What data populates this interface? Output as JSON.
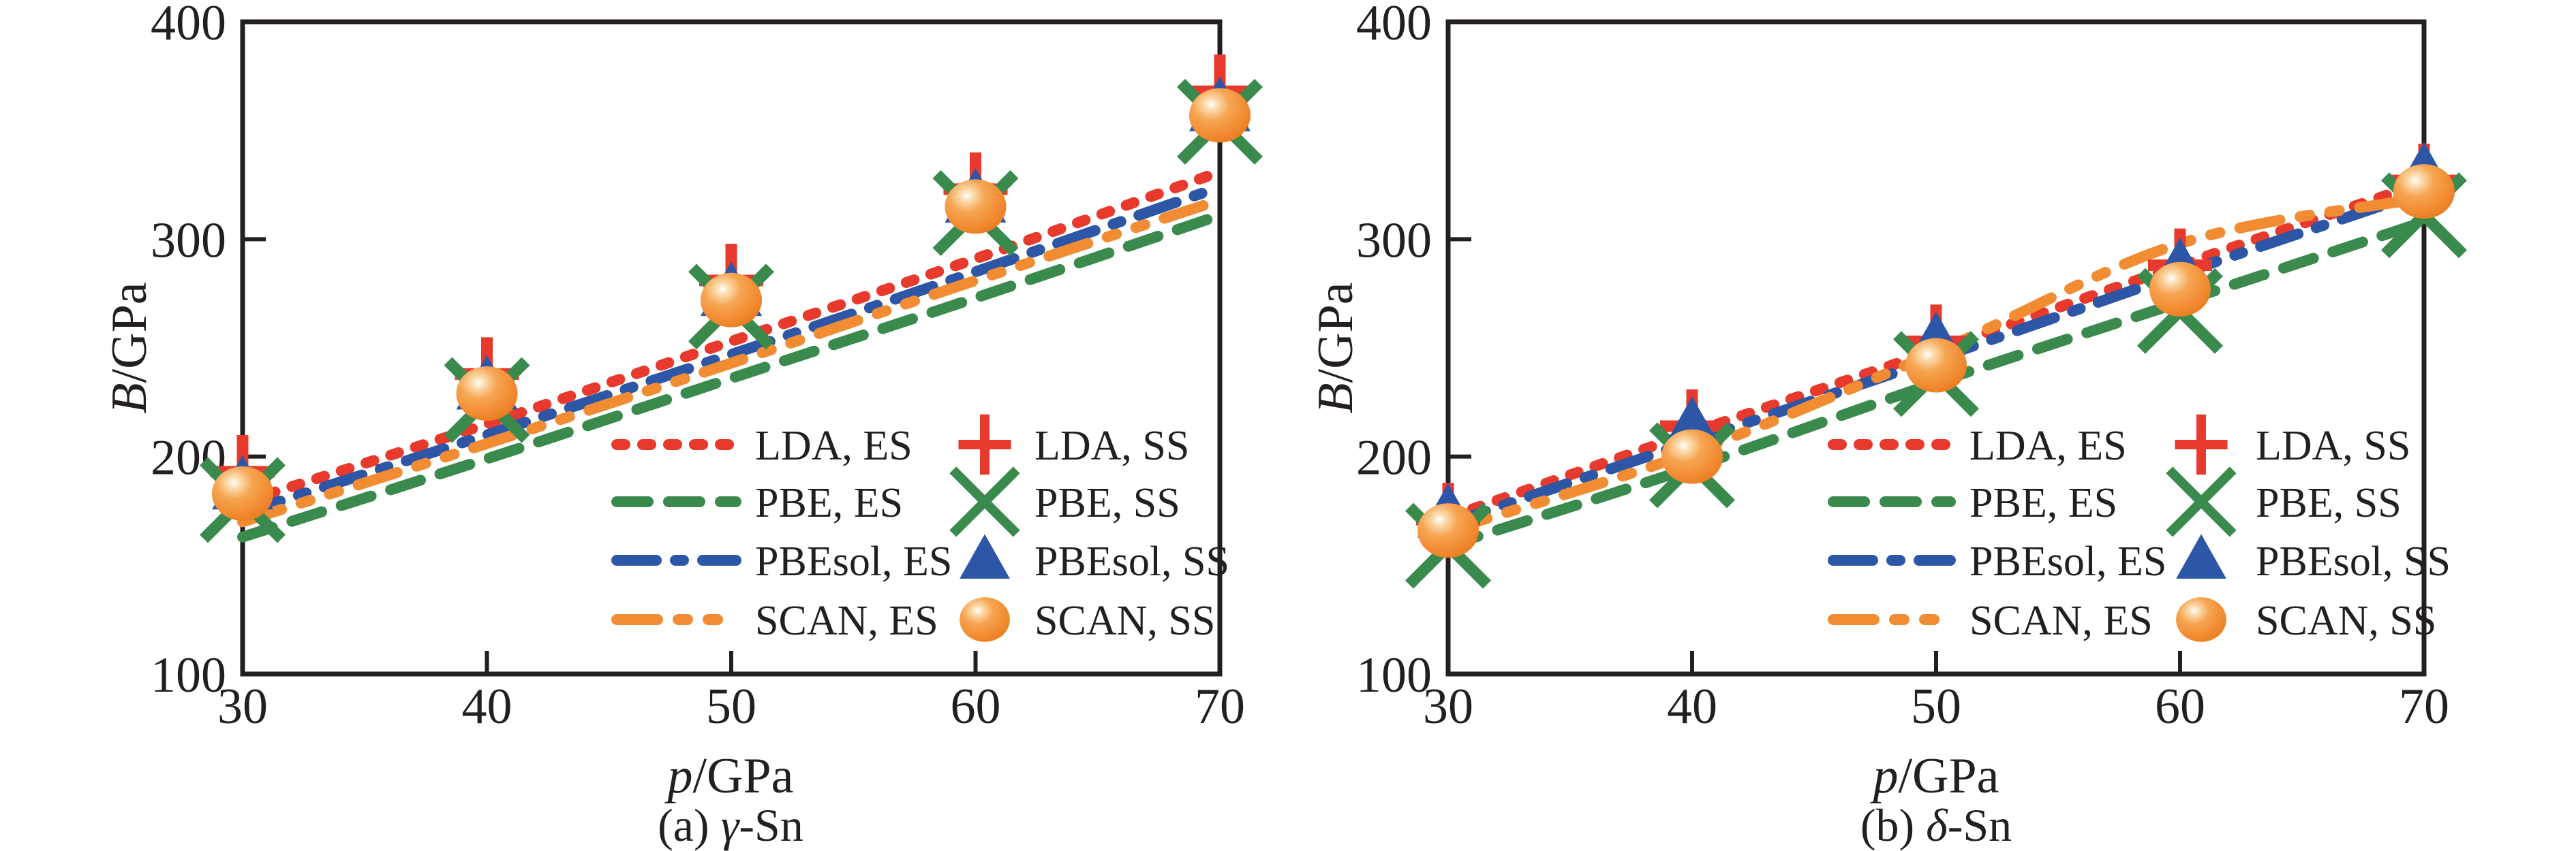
{
  "figure": {
    "background": "#ffffff",
    "ink_color": "#231f20",
    "colors": {
      "LDA": "#e8392d",
      "PBE": "#3a8a4d",
      "PBEsol": "#2d56a7",
      "SCAN": "#f28c33"
    }
  },
  "chart_data": [
    {
      "panel": "a",
      "type": "line+scatter",
      "caption": {
        "prefix": "(a) ",
        "symbol": "γ",
        "suffix": "-Sn"
      },
      "xlabel": {
        "italic": "p",
        "rest": "/GPa"
      },
      "ylabel": {
        "italic": "B",
        "rest": "/GPa"
      },
      "xlim": [
        30,
        70
      ],
      "ylim": [
        100,
        400
      ],
      "xticks": [
        30,
        40,
        50,
        60,
        70
      ],
      "yticks": [
        100,
        200,
        300,
        400
      ],
      "grid": false,
      "legend_position": "lower right inside, two columns",
      "x": [
        30,
        40,
        50,
        60,
        70
      ],
      "es_series": [
        {
          "name": "LDA, ES",
          "functional": "LDA",
          "style": "dotted",
          "values": [
            179,
            215,
            253,
            291,
            331
          ]
        },
        {
          "name": "PBE, ES",
          "functional": "PBE",
          "style": "dashed",
          "values": [
            163,
            199,
            236,
            273,
            311
          ]
        },
        {
          "name": "PBEsol, ES",
          "functional": "PBEsol",
          "style": "dashdot",
          "values": [
            174,
            210,
            247,
            285,
            324
          ]
        },
        {
          "name": "SCAN, ES",
          "functional": "SCAN",
          "style": "dashdotdot",
          "values": [
            170,
            206,
            243,
            281,
            318
          ]
        }
      ],
      "ss_series": [
        {
          "name": "LDA, SS",
          "functional": "LDA",
          "marker": "plus",
          "values": [
            193,
            238,
            281,
            323,
            368
          ]
        },
        {
          "name": "PBE, SS",
          "functional": "PBE",
          "marker": "x",
          "values": [
            180,
            226,
            269,
            312,
            354
          ]
        },
        {
          "name": "PBEsol, SS",
          "functional": "PBEsol",
          "marker": "triangle",
          "values": [
            186,
            232,
            275,
            318,
            360
          ]
        },
        {
          "name": "SCAN, SS",
          "functional": "SCAN",
          "marker": "sphere",
          "values": [
            183,
            229,
            272,
            315,
            357
          ]
        }
      ]
    },
    {
      "panel": "b",
      "type": "line+scatter",
      "caption": {
        "prefix": "(b) ",
        "symbol": "δ",
        "suffix": "-Sn"
      },
      "xlabel": {
        "italic": "p",
        "rest": "/GPa"
      },
      "ylabel": {
        "italic": "B",
        "rest": "/GPa"
      },
      "xlim": [
        30,
        70
      ],
      "ylim": [
        100,
        400
      ],
      "xticks": [
        30,
        40,
        50,
        60,
        70
      ],
      "yticks": [
        100,
        200,
        300,
        400
      ],
      "grid": false,
      "legend_position": "lower right inside, two columns",
      "x": [
        30,
        40,
        50,
        60,
        70
      ],
      "es_series": [
        {
          "name": "LDA, ES",
          "functional": "LDA",
          "style": "dotted",
          "values": [
            172,
            211,
            249,
            288,
            326
          ]
        },
        {
          "name": "PBE, ES",
          "functional": "PBE",
          "style": "dashed",
          "values": [
            159,
            195,
            234,
            271,
            308
          ]
        },
        {
          "name": "PBEsol, ES",
          "functional": "PBEsol",
          "style": "dashdot",
          "values": [
            169,
            207,
            245,
            284,
            322
          ]
        },
        {
          "name": "SCAN, ES",
          "functional": "SCAN",
          "style": "dashdotdot",
          "values": [
            166,
            202,
            248,
            298,
            319
          ]
        }
      ],
      "ss_series": [
        {
          "name": "LDA, SS",
          "functional": "LDA",
          "marker": "plus",
          "values": [
            171,
            214,
            253,
            288,
            327
          ]
        },
        {
          "name": "PBE, SS",
          "functional": "PBE",
          "marker": "x",
          "values": [
            159,
            196,
            238,
            267,
            311
          ]
        },
        {
          "name": "PBEsol, SS",
          "functional": "PBEsol",
          "marker": "triangle",
          "values": [
            173,
            213,
            252,
            286,
            330
          ]
        },
        {
          "name": "SCAN, SS",
          "functional": "SCAN",
          "marker": "sphere",
          "values": [
            166,
            200,
            242,
            277,
            322
          ]
        }
      ]
    }
  ]
}
